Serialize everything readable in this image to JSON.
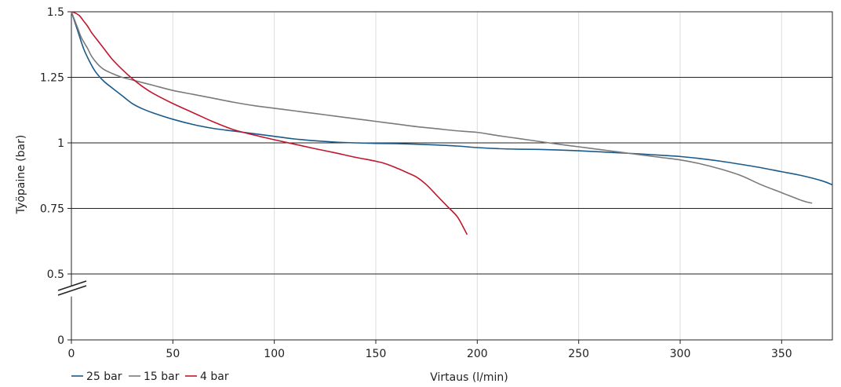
{
  "chart_data": {
    "type": "line",
    "title": "",
    "xlabel": "Virtaus (l/min)",
    "ylabel": "Työpaine (bar)",
    "xlim": [
      0,
      375
    ],
    "ylim": [
      0,
      1.5
    ],
    "axis_break": "between 0 and 0.5 on y axis",
    "x_ticks": [
      0,
      50,
      100,
      150,
      200,
      250,
      300,
      350
    ],
    "y_ticks": [
      0,
      0.5,
      0.75,
      1,
      1.25,
      1.5
    ],
    "x_tick_labels": [
      "0",
      "50",
      "100",
      "150",
      "200",
      "250",
      "300",
      "350"
    ],
    "y_tick_labels": [
      "0",
      "0.5",
      "0.75",
      "1",
      "1.25",
      "1.5"
    ],
    "grid": "horizontal major lines, light vertical lines",
    "legend_position": "bottom-left",
    "series": [
      {
        "name": "25 bar",
        "color": "#1a5a8a",
        "x": [
          0,
          3,
          6,
          9,
          12,
          16,
          20,
          25,
          30,
          35,
          40,
          50,
          60,
          70,
          80,
          90,
          100,
          110,
          120,
          130,
          140,
          150,
          160,
          170,
          180,
          190,
          200,
          210,
          220,
          230,
          240,
          250,
          260,
          270,
          280,
          290,
          300,
          310,
          320,
          330,
          340,
          350,
          360,
          370,
          375
        ],
        "y": [
          1.5,
          1.43,
          1.36,
          1.31,
          1.27,
          1.235,
          1.21,
          1.18,
          1.15,
          1.13,
          1.115,
          1.09,
          1.07,
          1.055,
          1.045,
          1.035,
          1.025,
          1.015,
          1.008,
          1.003,
          1.0,
          0.998,
          0.997,
          0.995,
          0.992,
          0.988,
          0.982,
          0.978,
          0.976,
          0.975,
          0.973,
          0.97,
          0.966,
          0.962,
          0.958,
          0.953,
          0.948,
          0.94,
          0.93,
          0.918,
          0.905,
          0.89,
          0.875,
          0.855,
          0.84
        ]
      },
      {
        "name": "15 bar",
        "color": "#7a7a7a",
        "x": [
          0,
          3,
          5,
          8,
          10,
          13,
          16,
          20,
          25,
          30,
          40,
          50,
          60,
          70,
          80,
          90,
          100,
          110,
          120,
          130,
          140,
          150,
          160,
          170,
          180,
          190,
          200,
          210,
          220,
          230,
          240,
          250,
          260,
          270,
          280,
          290,
          300,
          310,
          320,
          330,
          340,
          350,
          360,
          365
        ],
        "y": [
          1.5,
          1.44,
          1.4,
          1.36,
          1.33,
          1.3,
          1.28,
          1.265,
          1.25,
          1.24,
          1.22,
          1.2,
          1.185,
          1.17,
          1.155,
          1.142,
          1.132,
          1.122,
          1.112,
          1.102,
          1.092,
          1.082,
          1.072,
          1.062,
          1.054,
          1.046,
          1.04,
          1.028,
          1.017,
          1.006,
          0.995,
          0.985,
          0.975,
          0.965,
          0.955,
          0.945,
          0.935,
          0.92,
          0.9,
          0.875,
          0.84,
          0.81,
          0.78,
          0.77
        ]
      },
      {
        "name": "4 bar",
        "color": "#c0172c",
        "x": [
          0,
          2,
          4,
          6,
          8,
          10,
          13,
          16,
          20,
          25,
          30,
          35,
          40,
          50,
          60,
          70,
          80,
          90,
          100,
          110,
          120,
          130,
          140,
          150,
          155,
          160,
          165,
          170,
          175,
          180,
          185,
          190,
          193,
          195
        ],
        "y": [
          1.5,
          1.495,
          1.485,
          1.465,
          1.445,
          1.42,
          1.39,
          1.36,
          1.32,
          1.28,
          1.245,
          1.215,
          1.19,
          1.15,
          1.115,
          1.08,
          1.05,
          1.03,
          1.012,
          0.995,
          0.978,
          0.962,
          0.945,
          0.93,
          0.92,
          0.905,
          0.888,
          0.87,
          0.84,
          0.8,
          0.76,
          0.72,
          0.68,
          0.65
        ]
      }
    ]
  }
}
